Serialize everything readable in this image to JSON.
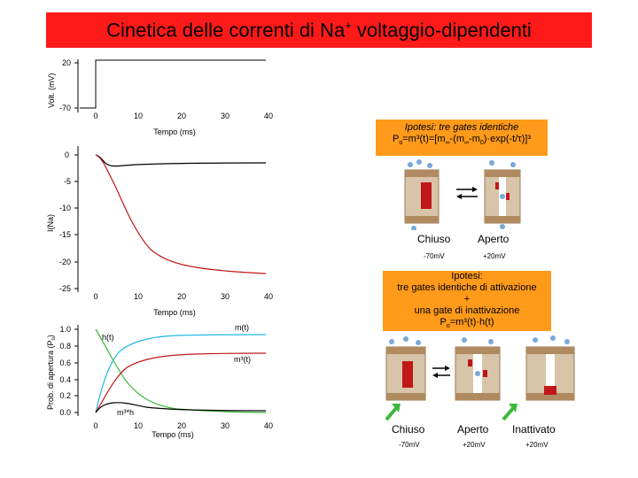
{
  "title": {
    "main": "Cinetica delle correnti di Na",
    "sup": "+",
    "rest": " voltaggio-dipendenti"
  },
  "voltage_chart": {
    "ylabel": "Volt. (mV)",
    "yticks": [
      "20",
      "-70"
    ],
    "xticks": [
      "0",
      "10",
      "20",
      "30",
      "40"
    ],
    "xlabel": "Tempo (ms)"
  },
  "current_chart": {
    "ylabel": "I(Na)",
    "yticks": [
      "0",
      "-5",
      "-10",
      "-15",
      "-20",
      "-25"
    ],
    "xticks": [
      "0",
      "10",
      "20",
      "30",
      "40"
    ],
    "xlabel": "Tempo (ms)"
  },
  "prob_chart": {
    "ylabel": "Prob. di apertura (P",
    "ylabel_sub": "o",
    "ylabel_end": ")",
    "yticks": [
      "1.0",
      "0.8",
      "0.6",
      "0.4",
      "0.2",
      "0.0"
    ],
    "xticks": [
      "0",
      "10",
      "20",
      "30",
      "40"
    ],
    "xlabel": "Tempo (ms)",
    "label_m": "m(t)",
    "label_h": "h(t)",
    "label_m3": "m³(t)",
    "label_m3h": "m³*h"
  },
  "hypothesis1": {
    "line1": "Ipotesi: tre gates identiche",
    "line2_a": "P",
    "line2_sub": "o",
    "line2_b": "=m³(t)=[m",
    "line2_c": "∞",
    "line2_d": "-(m",
    "line2_e": "∞",
    "line2_f": "-m",
    "line2_g": "0",
    "line2_h": ")·exp(-t/τ)]³"
  },
  "hypothesis2": {
    "line1": "Ipotesi:",
    "line2": "tre gates identiche di attivazione",
    "line3": "+",
    "line4": "una gate di inattivazione",
    "line5_a": "P",
    "line5_sub": "o",
    "line5_b": "=m³(t)·h(t)"
  },
  "diagram1": {
    "state_closed": "Chiuso",
    "state_open": "Aperto",
    "v_closed": "-70mV",
    "v_open": "+20mV"
  },
  "diagram2": {
    "state_closed": "Chiuso",
    "state_open": "Aperto",
    "state_inact": "Inattivato",
    "v_closed": "-70mV",
    "v_open": "+20mV",
    "v_inact": "+20mV"
  },
  "colors": {
    "title_bg": "#ff1a1a",
    "box_bg": "#ff9a1a",
    "m_curve": "#1fb8e6",
    "h_curve": "#3cb83c",
    "m3_curve": "#c01818"
  }
}
